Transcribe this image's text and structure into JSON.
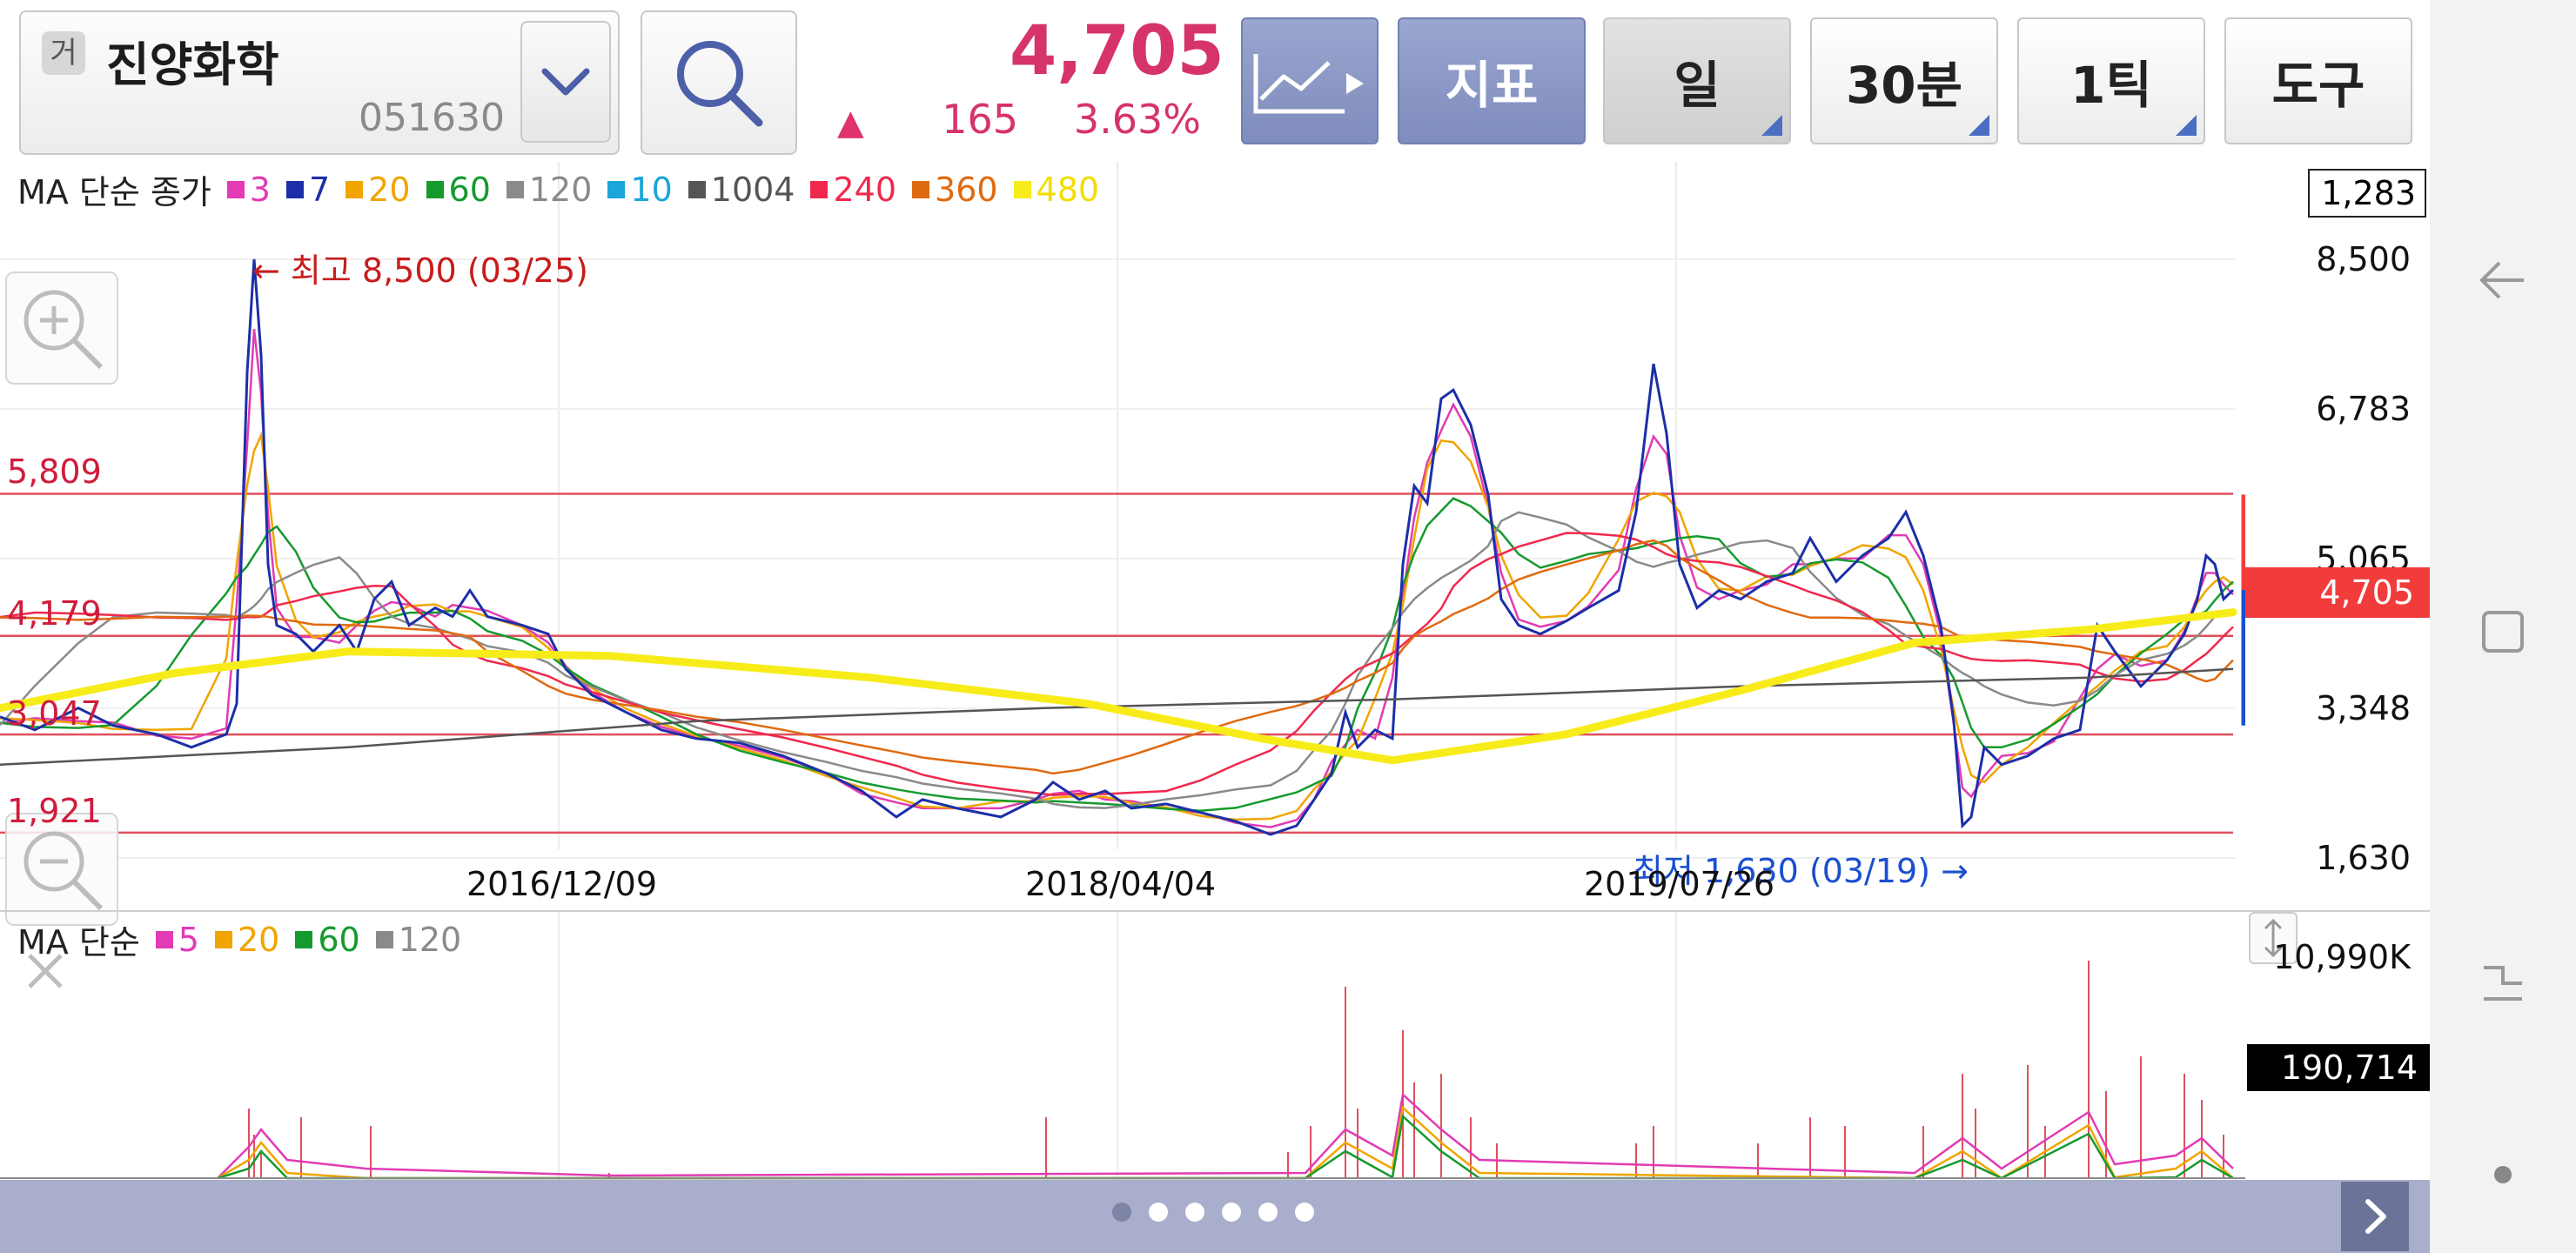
{
  "stock": {
    "badge": "거",
    "name": "진양화학",
    "code": "051630"
  },
  "quote": {
    "price": "4,705",
    "arrow": "▲",
    "change": "165",
    "change_pct": "3.63%"
  },
  "toolbar": {
    "indicator_label": "지표",
    "period_day": "일",
    "period_30min": "30분",
    "tick": "1틱",
    "tools": "도구"
  },
  "price_legend": {
    "title": "MA 단순 종가",
    "items": [
      {
        "label": "3",
        "color": "#e23bb4"
      },
      {
        "label": "7",
        "color": "#1c2fa8"
      },
      {
        "label": "20",
        "color": "#f0a500"
      },
      {
        "label": "60",
        "color": "#159a2e"
      },
      {
        "label": "120",
        "color": "#8a8a8a"
      },
      {
        "label": "10",
        "color": "#1aa6d8"
      },
      {
        "label": "1004",
        "color": "#555555"
      },
      {
        "label": "240",
        "color": "#f0284e"
      },
      {
        "label": "360",
        "color": "#e06a10"
      },
      {
        "label": "480",
        "color": "#f7ec1a"
      }
    ]
  },
  "price_axis": {
    "top_box": "1,283",
    "ticks": [
      {
        "label": "8,500",
        "value": 8500
      },
      {
        "label": "6,783",
        "value": 6783
      },
      {
        "label": "5,065",
        "value": 5065
      },
      {
        "label": "3,348",
        "value": 3348
      },
      {
        "label": "1,630",
        "value": 1630
      }
    ],
    "current": "4,705"
  },
  "ref_lines": [
    {
      "label": "5,809",
      "value": 5809
    },
    {
      "label": "4,179",
      "value": 4179
    },
    {
      "label": "3,047",
      "value": 3047
    },
    {
      "label": "1,921",
      "value": 1921
    }
  ],
  "annotations": {
    "high": "← 최고 8,500 (03/25)",
    "low": "최저 1,630 (03/19) →"
  },
  "dates": [
    "2016/12/09",
    "2018/04/04",
    "2019/07/26"
  ],
  "volume_legend": {
    "title": "MA 단순",
    "items": [
      {
        "label": "5",
        "color": "#e23bb4"
      },
      {
        "label": "20",
        "color": "#f0a500"
      },
      {
        "label": "60",
        "color": "#159a2e"
      },
      {
        "label": "120",
        "color": "#8a8a8a"
      }
    ]
  },
  "volume_axis": {
    "max": "10,990K",
    "current": "190,714"
  },
  "pager": {
    "count": 6,
    "active": 0
  }
}
